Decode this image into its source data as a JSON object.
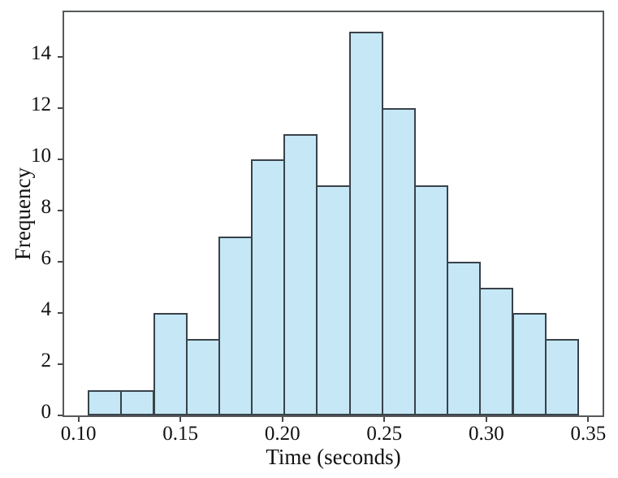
{
  "chart_data": {
    "type": "bar",
    "subtype": "histogram",
    "title": "",
    "xlabel": "Time (seconds)",
    "ylabel": "Frequency",
    "bin_edges": [
      0.105,
      0.121,
      0.137,
      0.153,
      0.169,
      0.185,
      0.201,
      0.217,
      0.233,
      0.249,
      0.265,
      0.281,
      0.297,
      0.313,
      0.329,
      0.345
    ],
    "frequencies": [
      1,
      1,
      4,
      3,
      7,
      10,
      11,
      9,
      15,
      12,
      9,
      6,
      5,
      4,
      3
    ],
    "xlim": [
      0.093,
      0.357
    ],
    "ylim": [
      0,
      15.75
    ],
    "x_ticks": [
      0.1,
      0.15,
      0.2,
      0.25,
      0.3,
      0.35
    ],
    "x_tick_labels": [
      "0.10",
      "0.15",
      "0.20",
      "0.25",
      "0.30",
      "0.35"
    ],
    "y_ticks": [
      0,
      2,
      4,
      6,
      8,
      10,
      12,
      14
    ],
    "y_tick_labels": [
      "0",
      "2",
      "4",
      "6",
      "8",
      "10",
      "12",
      "14"
    ],
    "grid": false,
    "legend": null,
    "colors": {
      "bar_fill": "#c5e7f6",
      "bar_edge": "#39424a",
      "spine": "#56595c",
      "tick": "#45484b",
      "text": "#111111",
      "background": "#ffffff"
    }
  }
}
